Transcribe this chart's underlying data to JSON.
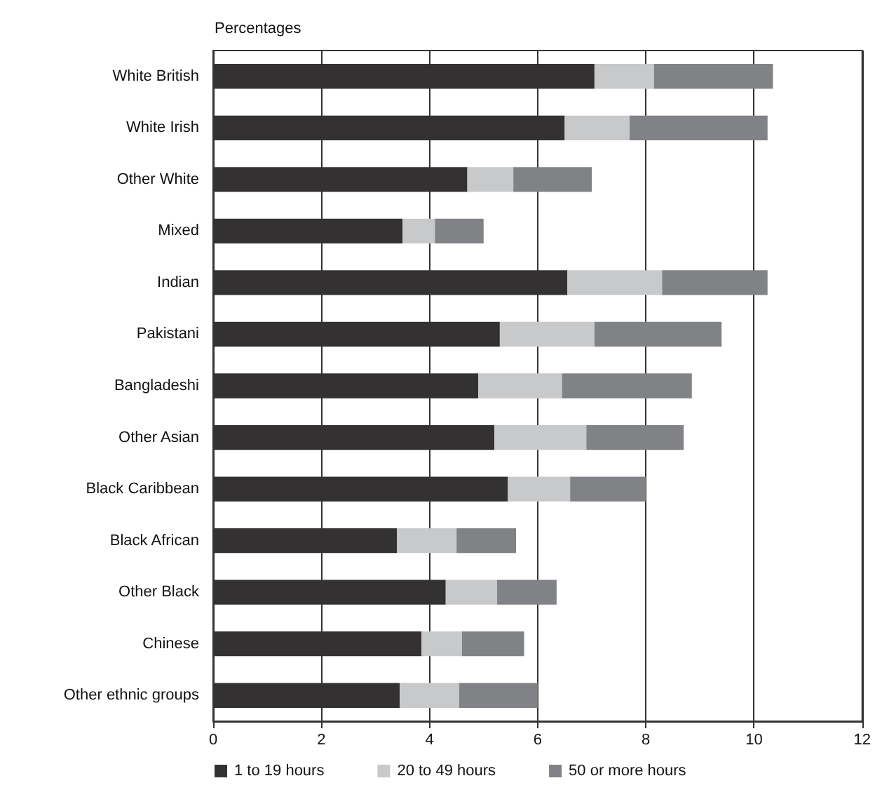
{
  "chart_data": {
    "type": "bar",
    "orientation": "horizontal",
    "stacked": true,
    "xlabel": "Percentages",
    "categories": [
      "White British",
      "White Irish",
      "Other White",
      "Mixed",
      "Indian",
      "Pakistani",
      "Bangladeshi",
      "Other Asian",
      "Black Caribbean",
      "Black African",
      "Other Black",
      "Chinese",
      "Other ethnic groups"
    ],
    "series": [
      {
        "name": "1 to 19 hours",
        "color": "#333132",
        "values": [
          7.05,
          6.5,
          4.7,
          3.5,
          6.55,
          5.3,
          4.9,
          5.2,
          5.45,
          3.4,
          4.3,
          3.85,
          3.45
        ]
      },
      {
        "name": "20 to 49 hours",
        "color": "#c8c9ca",
        "values": [
          1.1,
          1.2,
          0.85,
          0.6,
          1.75,
          1.75,
          1.55,
          1.7,
          1.15,
          1.1,
          0.95,
          0.75,
          1.1
        ]
      },
      {
        "name": "50 or more hours",
        "color": "#818285",
        "values": [
          2.2,
          2.55,
          1.45,
          0.9,
          1.95,
          2.35,
          2.4,
          1.8,
          1.4,
          1.1,
          1.1,
          1.15,
          1.45
        ]
      }
    ],
    "xlim": [
      0,
      12
    ],
    "xticks": [
      0,
      2,
      4,
      6,
      8,
      10,
      12
    ],
    "grid": "x",
    "legend": "bottom"
  }
}
